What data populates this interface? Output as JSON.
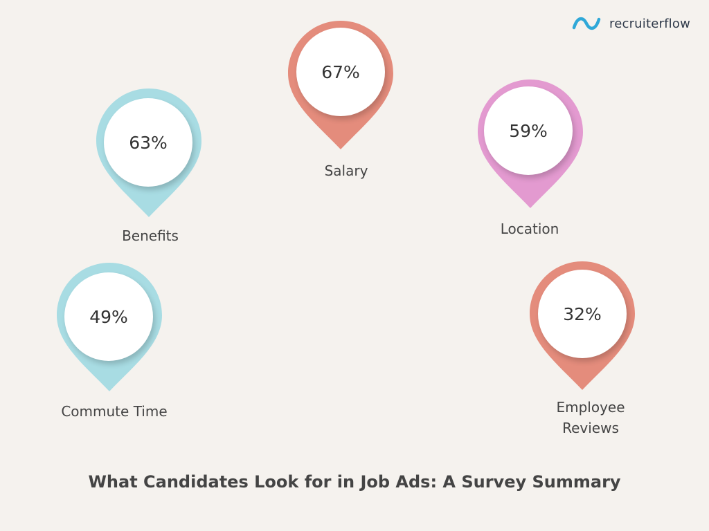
{
  "brand": {
    "name": "recruiterflow",
    "logo_icon": "wave-icon",
    "logo_color": "#2fa8d8"
  },
  "pins": [
    {
      "id": "salary",
      "value": "67%",
      "label": "Salary",
      "color": "#e48c7c"
    },
    {
      "id": "benefits",
      "value": "63%",
      "label": "Benefits",
      "color": "#a8dce3"
    },
    {
      "id": "location",
      "value": "59%",
      "label": "Location",
      "color": "#e39ad0"
    },
    {
      "id": "commute",
      "value": "49%",
      "label": "Commute Time",
      "color": "#a8dce3"
    },
    {
      "id": "reviews",
      "value": "32%",
      "label": "Employee Reviews",
      "color": "#e48c7c"
    }
  ],
  "title": "What Candidates Look for in Job Ads: A Survey Summary"
}
